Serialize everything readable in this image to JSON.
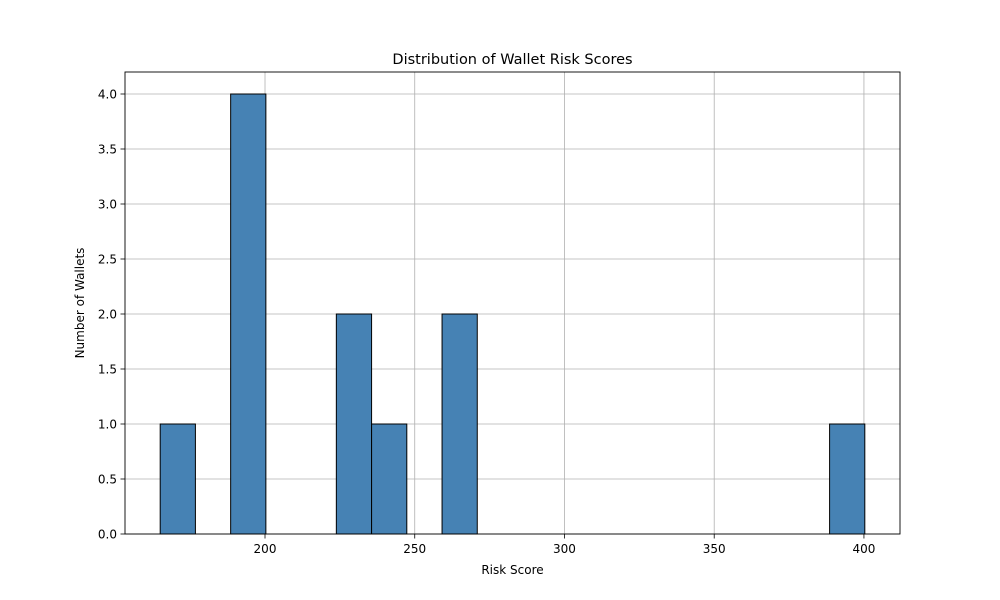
{
  "chart_data": {
    "type": "bar",
    "title": "Distribution of Wallet Risk Scores",
    "xlabel": "Risk Score",
    "ylabel": "Number of Wallets",
    "bin_width": 11.76,
    "bars": [
      {
        "start": 165.0,
        "end": 176.76,
        "count": 1
      },
      {
        "start": 188.53,
        "end": 200.29,
        "count": 4
      },
      {
        "start": 223.82,
        "end": 235.59,
        "count": 2
      },
      {
        "start": 235.59,
        "end": 247.35,
        "count": 1
      },
      {
        "start": 259.12,
        "end": 270.88,
        "count": 2
      },
      {
        "start": 388.53,
        "end": 400.29,
        "count": 1
      }
    ],
    "xticks": [
      200,
      250,
      300,
      350,
      400
    ],
    "xtick_labels": [
      "200",
      "250",
      "300",
      "350",
      "400"
    ],
    "yticks": [
      0,
      0.5,
      1,
      1.5,
      2,
      2.5,
      3,
      3.5,
      4
    ],
    "ytick_labels": [
      "0.0",
      "0.5",
      "1.0",
      "1.5",
      "2.0",
      "2.5",
      "3.0",
      "3.5",
      "4.0"
    ],
    "xlim": [
      153.25,
      412.04
    ],
    "ylim": [
      0,
      4.2
    ],
    "grid": true,
    "colors": {
      "bar_fill": "#4682b4",
      "bar_edge": "#000000"
    }
  }
}
